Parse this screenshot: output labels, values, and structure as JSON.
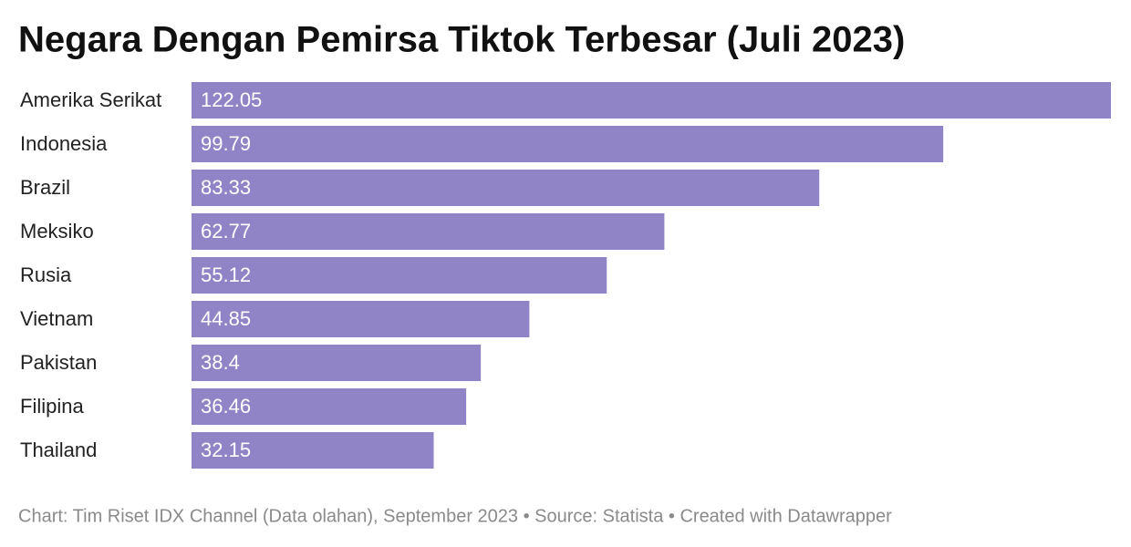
{
  "chart_data": {
    "type": "bar",
    "orientation": "horizontal",
    "title": "Negara Dengan Pemirsa Tiktok Terbesar (Juli 2023)",
    "categories": [
      "Amerika Serikat",
      "Indonesia",
      "Brazil",
      "Meksiko",
      "Rusia",
      "Vietnam",
      "Pakistan",
      "Filipina",
      "Thailand"
    ],
    "values": [
      122.05,
      99.79,
      83.33,
      62.77,
      55.12,
      44.85,
      38.4,
      36.46,
      32.15
    ],
    "color": "#9184c6",
    "source": "Chart: Tim Riset IDX Channel (Data olahan), September 2023 • Source: Statista • Created with Datawrapper"
  }
}
